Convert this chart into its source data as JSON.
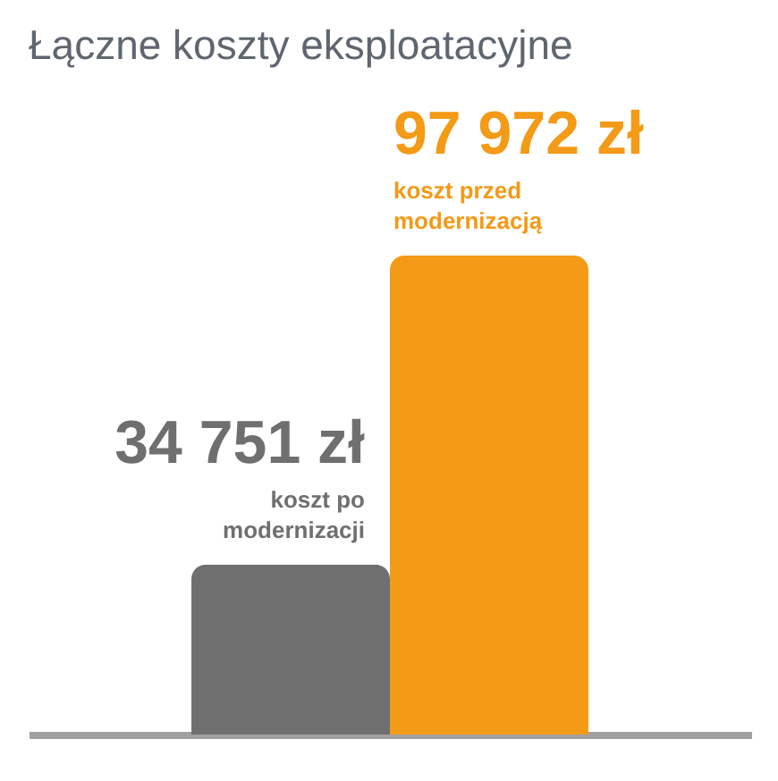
{
  "chart_data": {
    "type": "bar",
    "title": "Łączne koszty eksploatacyjne",
    "categories": [
      "koszt po modernizacji",
      "koszt przed modernizacją"
    ],
    "values": [
      34751,
      97972
    ],
    "colors": [
      "#6f6f6f",
      "#f39a16"
    ],
    "value_labels": [
      "34 751 zł",
      "97 972 zł"
    ]
  }
}
